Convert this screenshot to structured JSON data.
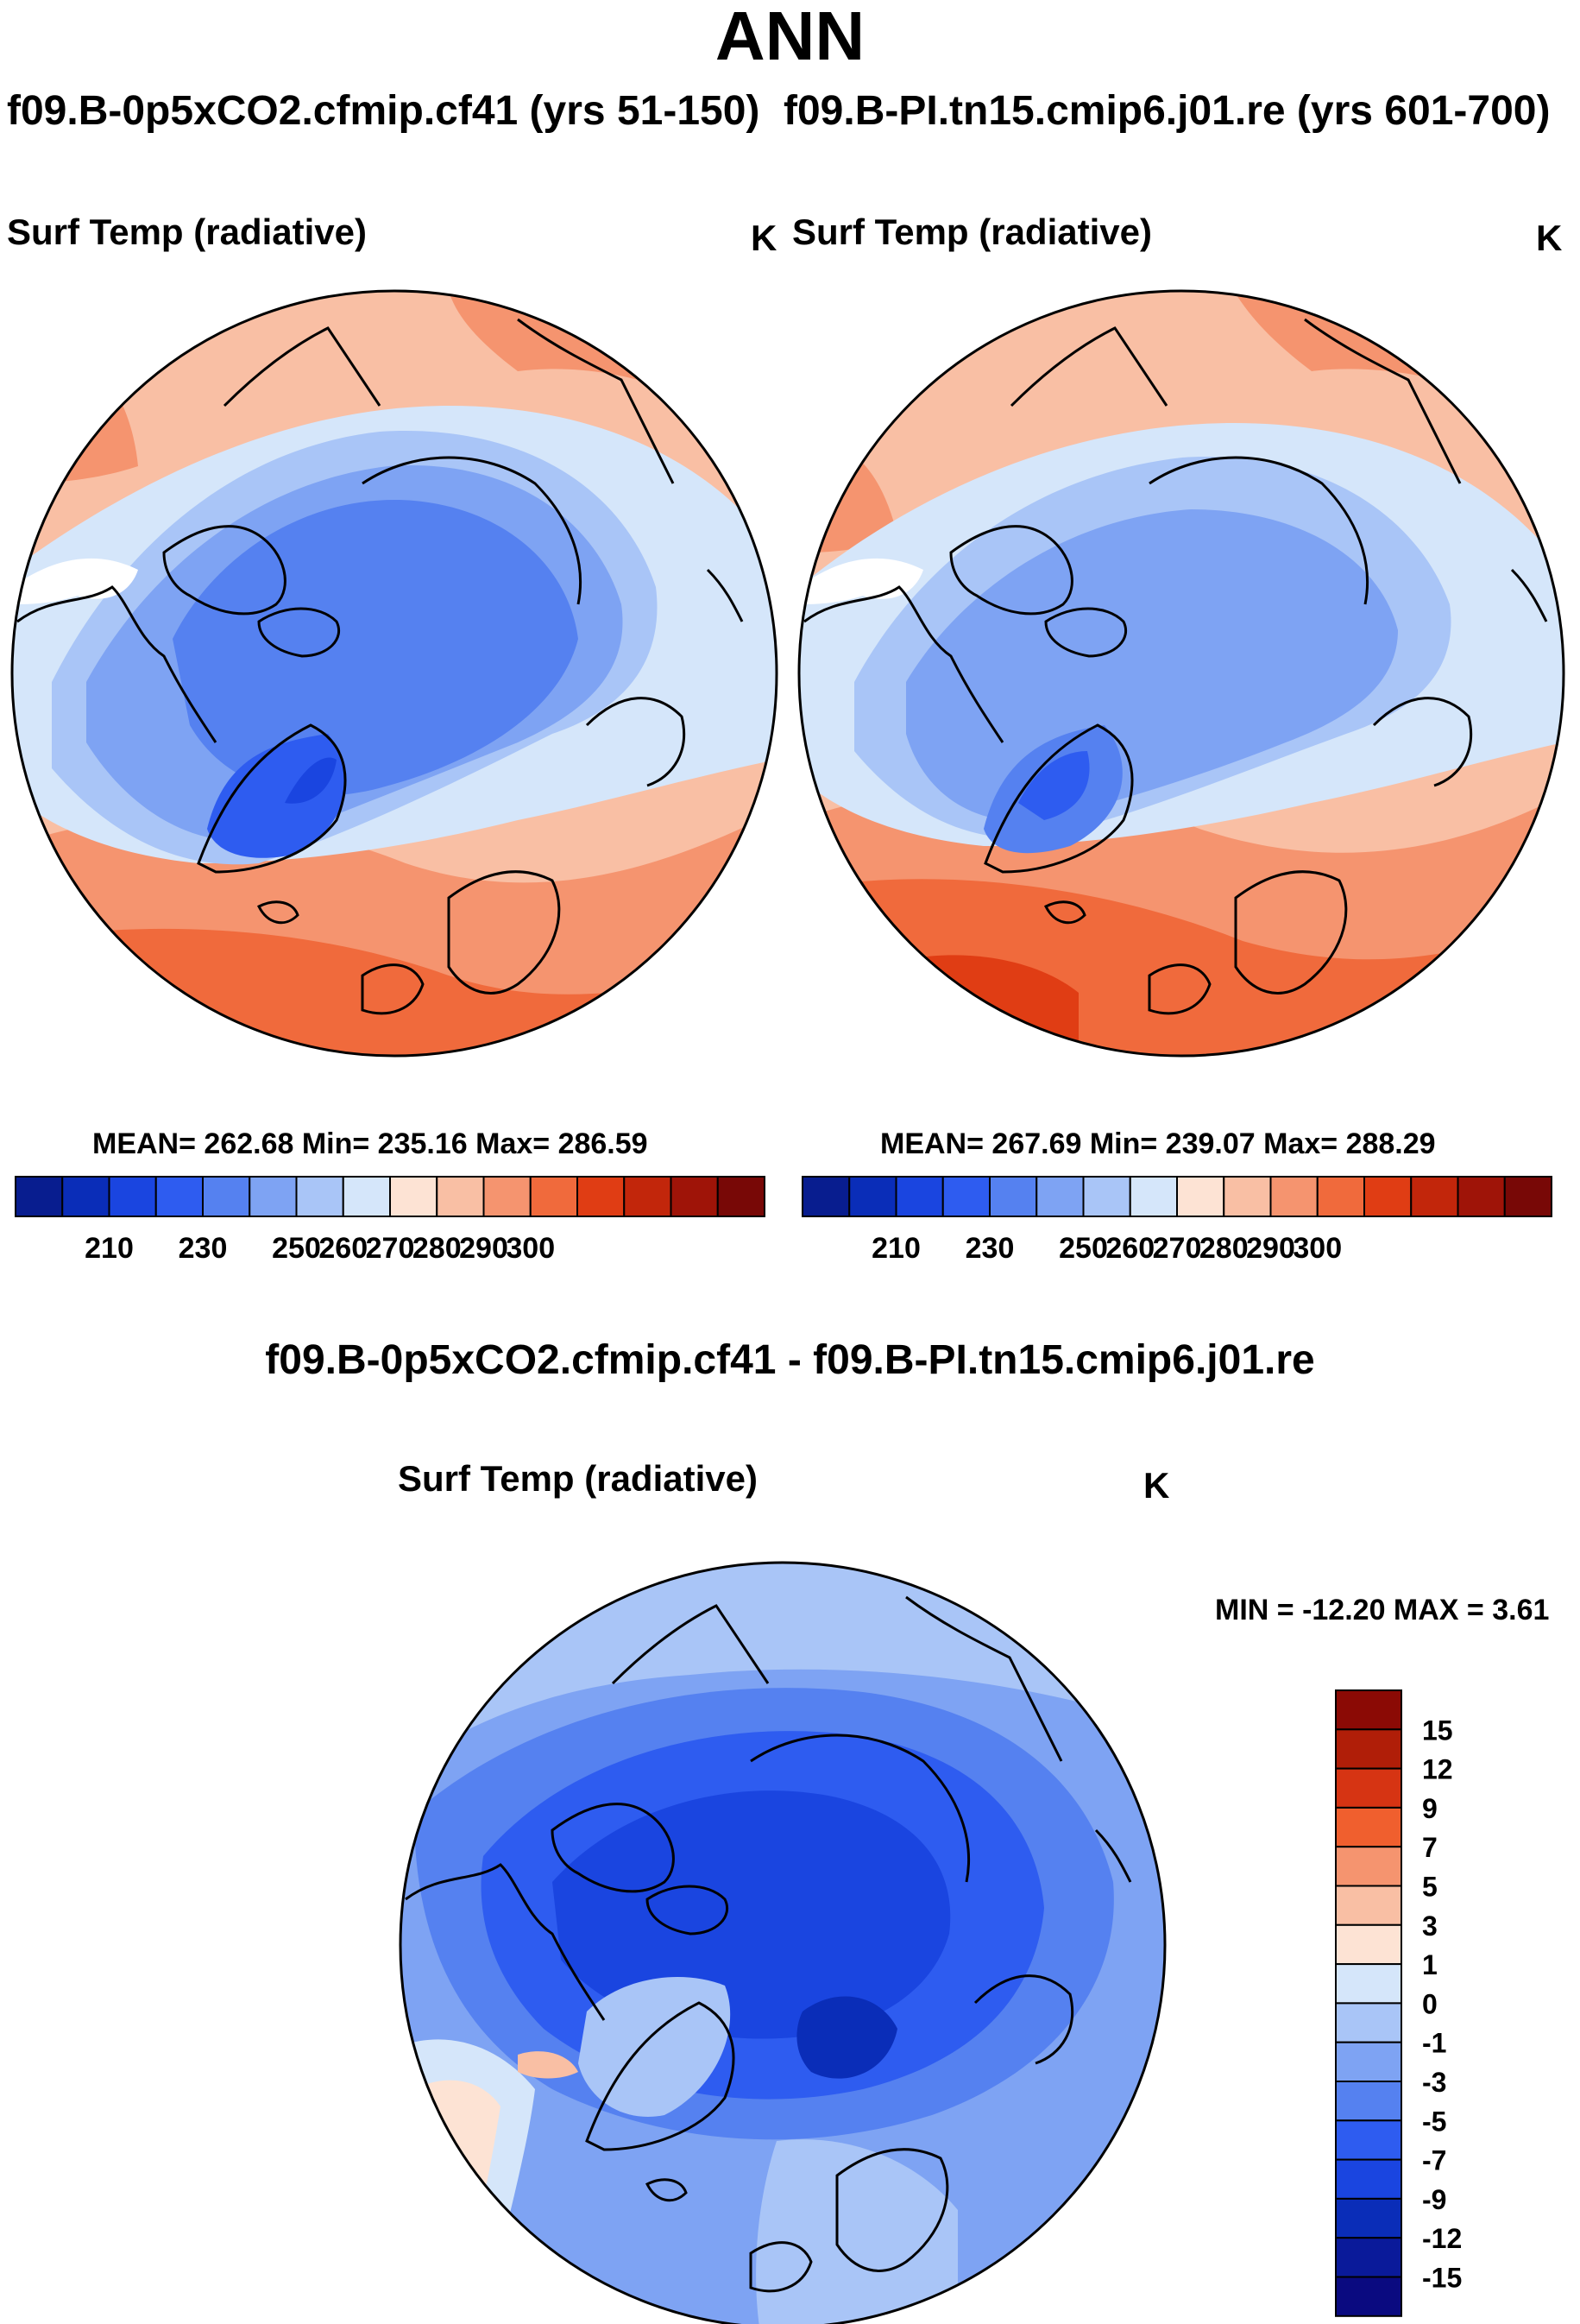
{
  "header": {
    "title": "ANN",
    "case_left": "f09.B-0p5xCO2.cfmip.cf41 (yrs 51-150)",
    "case_right": "f09.B-PI.tn15.cmip6.j01.re (yrs 601-700)",
    "difference_title": "f09.B-0p5xCO2.cfmip.cf41 - f09.B-PI.tn15.cmip6.j01.re"
  },
  "colors": {
    "abs_palette": [
      "#081d8f",
      "#0a2db8",
      "#1a45e0",
      "#2e5cf0",
      "#5581f0",
      "#7ea3f3",
      "#a9c5f7",
      "#d5e6fa",
      "#fde3d4",
      "#f9bfa4",
      "#f5946f",
      "#f06a3c",
      "#e03d14",
      "#c2260b",
      "#9f1408",
      "#780806"
    ],
    "diff_palette": [
      "#0a0a80",
      "#0a2db8",
      "#1a45e0",
      "#2e5cf0",
      "#5581f0",
      "#7ea3f3",
      "#a9c5f7",
      "#d5e6fa",
      "#fde3d4",
      "#f9bfa4",
      "#f5946f",
      "#f06a3c",
      "#e03d14",
      "#c2260b",
      "#8b0a05"
    ]
  },
  "chart_data": [
    {
      "type": "heatmap",
      "projection": "north-polar-stereographic",
      "title": "Surf Temp (radiative)",
      "units": "K",
      "case": "f09.B-0p5xCO2.cfmip.cf41 (yrs 51-150)",
      "mean": "262.68",
      "min": "235.16",
      "max": "286.59",
      "stats_label": "MEAN= 262.68  Min= 235.16  Max= 286.59",
      "colorbar_levels": [
        205,
        210,
        215,
        220,
        225,
        230,
        235,
        240,
        245,
        250,
        255,
        260,
        265,
        270,
        275,
        280,
        285,
        290,
        295,
        300
      ],
      "colorbar_tick_labels": [
        "210",
        "230",
        "250",
        "260",
        "270",
        "280",
        "290",
        "300"
      ]
    },
    {
      "type": "heatmap",
      "projection": "north-polar-stereographic",
      "title": "Surf Temp (radiative)",
      "units": "K",
      "case": "f09.B-PI.tn15.cmip6.j01.re (yrs 601-700)",
      "mean": "267.69",
      "min": "239.07",
      "max": "288.29",
      "stats_label": "MEAN= 267.69  Min= 239.07  Max= 288.29",
      "colorbar_tick_labels": [
        "210",
        "230",
        "250",
        "260",
        "270",
        "280",
        "290",
        "300"
      ]
    },
    {
      "type": "heatmap",
      "projection": "north-polar-stereographic",
      "title": "Surf Temp (radiative)",
      "units": "K",
      "case": "difference",
      "min": "-12.20",
      "max": "3.61",
      "stats_label": "MIN = -12.20 MAX =   3.61",
      "colorbar_levels": [
        -15,
        -12,
        -9,
        -7,
        -5,
        -3,
        -1,
        0,
        1,
        3,
        5,
        7,
        9,
        12,
        15
      ],
      "colorbar_tick_labels": [
        "15",
        "12",
        "9",
        "7",
        "5",
        "3",
        "1",
        "0",
        "-1",
        "-3",
        "-5",
        "-7",
        "-9",
        "-12",
        "-15"
      ]
    }
  ]
}
